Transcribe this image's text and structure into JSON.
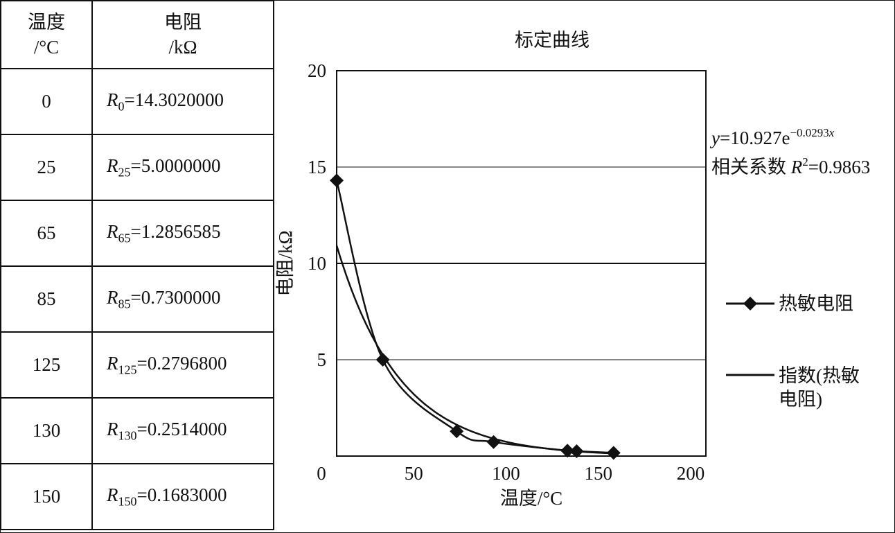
{
  "table": {
    "header": {
      "temp_line1": "温度",
      "temp_line2": "/°C",
      "res_line1": "电阻",
      "res_line2": "/kΩ"
    },
    "rows": [
      {
        "temp": "0",
        "sym": "R",
        "sub": "0",
        "val": "=14.3020000"
      },
      {
        "temp": "25",
        "sym": "R",
        "sub": "25",
        "val": "=5.0000000"
      },
      {
        "temp": "65",
        "sym": "R",
        "sub": "65",
        "val": "=1.2856585"
      },
      {
        "temp": "85",
        "sym": "R",
        "sub": "85",
        "val": "=0.7300000"
      },
      {
        "temp": "125",
        "sym": "R",
        "sub": "125",
        "val": "=0.2796800"
      },
      {
        "temp": "130",
        "sym": "R",
        "sub": "130",
        "val": "=0.2514000"
      },
      {
        "temp": "150",
        "sym": "R",
        "sub": "150",
        "val": "=0.1683000"
      }
    ]
  },
  "chart_data": {
    "type": "scatter",
    "title": "标定曲线",
    "xlabel": "温度/°C",
    "ylabel": "电阻/kΩ",
    "xlim": [
      0,
      200
    ],
    "ylim": [
      0,
      20
    ],
    "xticks": [
      "0",
      "50",
      "100",
      "150",
      "200"
    ],
    "yticks": [
      "5",
      "10",
      "15",
      "20"
    ],
    "grid": "horizontal",
    "legend_position": "right",
    "series": [
      {
        "name": "热敏电阻",
        "marker": "diamond",
        "x": [
          0,
          25,
          65,
          85,
          125,
          130,
          150
        ],
        "y": [
          14.302,
          5.0,
          1.2856585,
          0.73,
          0.27968,
          0.2514,
          0.1683
        ]
      },
      {
        "name": "指数(热敏电阻)",
        "legend_line1": "指数(热敏",
        "legend_line2": "电阻)",
        "kind": "exponential-fit",
        "a": 10.927,
        "b": -0.0293
      }
    ],
    "annotation": {
      "eq_y": "y",
      "eq_mid": "=10.927e",
      "eq_exp": "−0.0293",
      "eq_x": "x",
      "r2_prefix": "相关系数 ",
      "r2_R": "R",
      "r2_sup": "2",
      "r2_val": "=0.9863"
    },
    "colors": {
      "line": "#111111",
      "grid": "#111111"
    }
  }
}
